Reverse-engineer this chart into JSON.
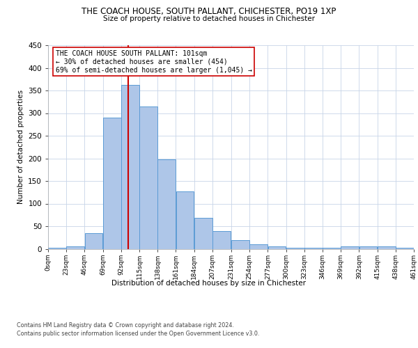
{
  "title1": "THE COACH HOUSE, SOUTH PALLANT, CHICHESTER, PO19 1XP",
  "title2": "Size of property relative to detached houses in Chichester",
  "xlabel": "Distribution of detached houses by size in Chichester",
  "ylabel": "Number of detached properties",
  "bin_edges": [
    0,
    23,
    46,
    69,
    92,
    115,
    138,
    161,
    184,
    207,
    231,
    254,
    277,
    300,
    323,
    346,
    369,
    392,
    415,
    438,
    461
  ],
  "bar_heights": [
    3,
    5,
    35,
    290,
    362,
    315,
    197,
    127,
    68,
    40,
    20,
    10,
    5,
    2,
    2,
    2,
    5,
    5,
    5,
    2
  ],
  "x_tick_labels": [
    "0sqm",
    "23sqm",
    "46sqm",
    "69sqm",
    "92sqm",
    "115sqm",
    "138sqm",
    "161sqm",
    "184sqm",
    "207sqm",
    "231sqm",
    "254sqm",
    "277sqm",
    "300sqm",
    "323sqm",
    "346sqm",
    "369sqm",
    "392sqm",
    "415sqm",
    "438sqm",
    "461sqm"
  ],
  "bar_color": "#aec6e8",
  "bar_edge_color": "#5b9bd5",
  "vline_x": 101,
  "vline_color": "#cc0000",
  "ylim": [
    0,
    450
  ],
  "yticks": [
    0,
    50,
    100,
    150,
    200,
    250,
    300,
    350,
    400,
    450
  ],
  "annotation_text": "THE COACH HOUSE SOUTH PALLANT: 101sqm\n← 30% of detached houses are smaller (454)\n69% of semi-detached houses are larger (1,045) →",
  "footer1": "Contains HM Land Registry data © Crown copyright and database right 2024.",
  "footer2": "Contains public sector information licensed under the Open Government Licence v3.0.",
  "background_color": "#ffffff",
  "grid_color": "#c8d4e8"
}
